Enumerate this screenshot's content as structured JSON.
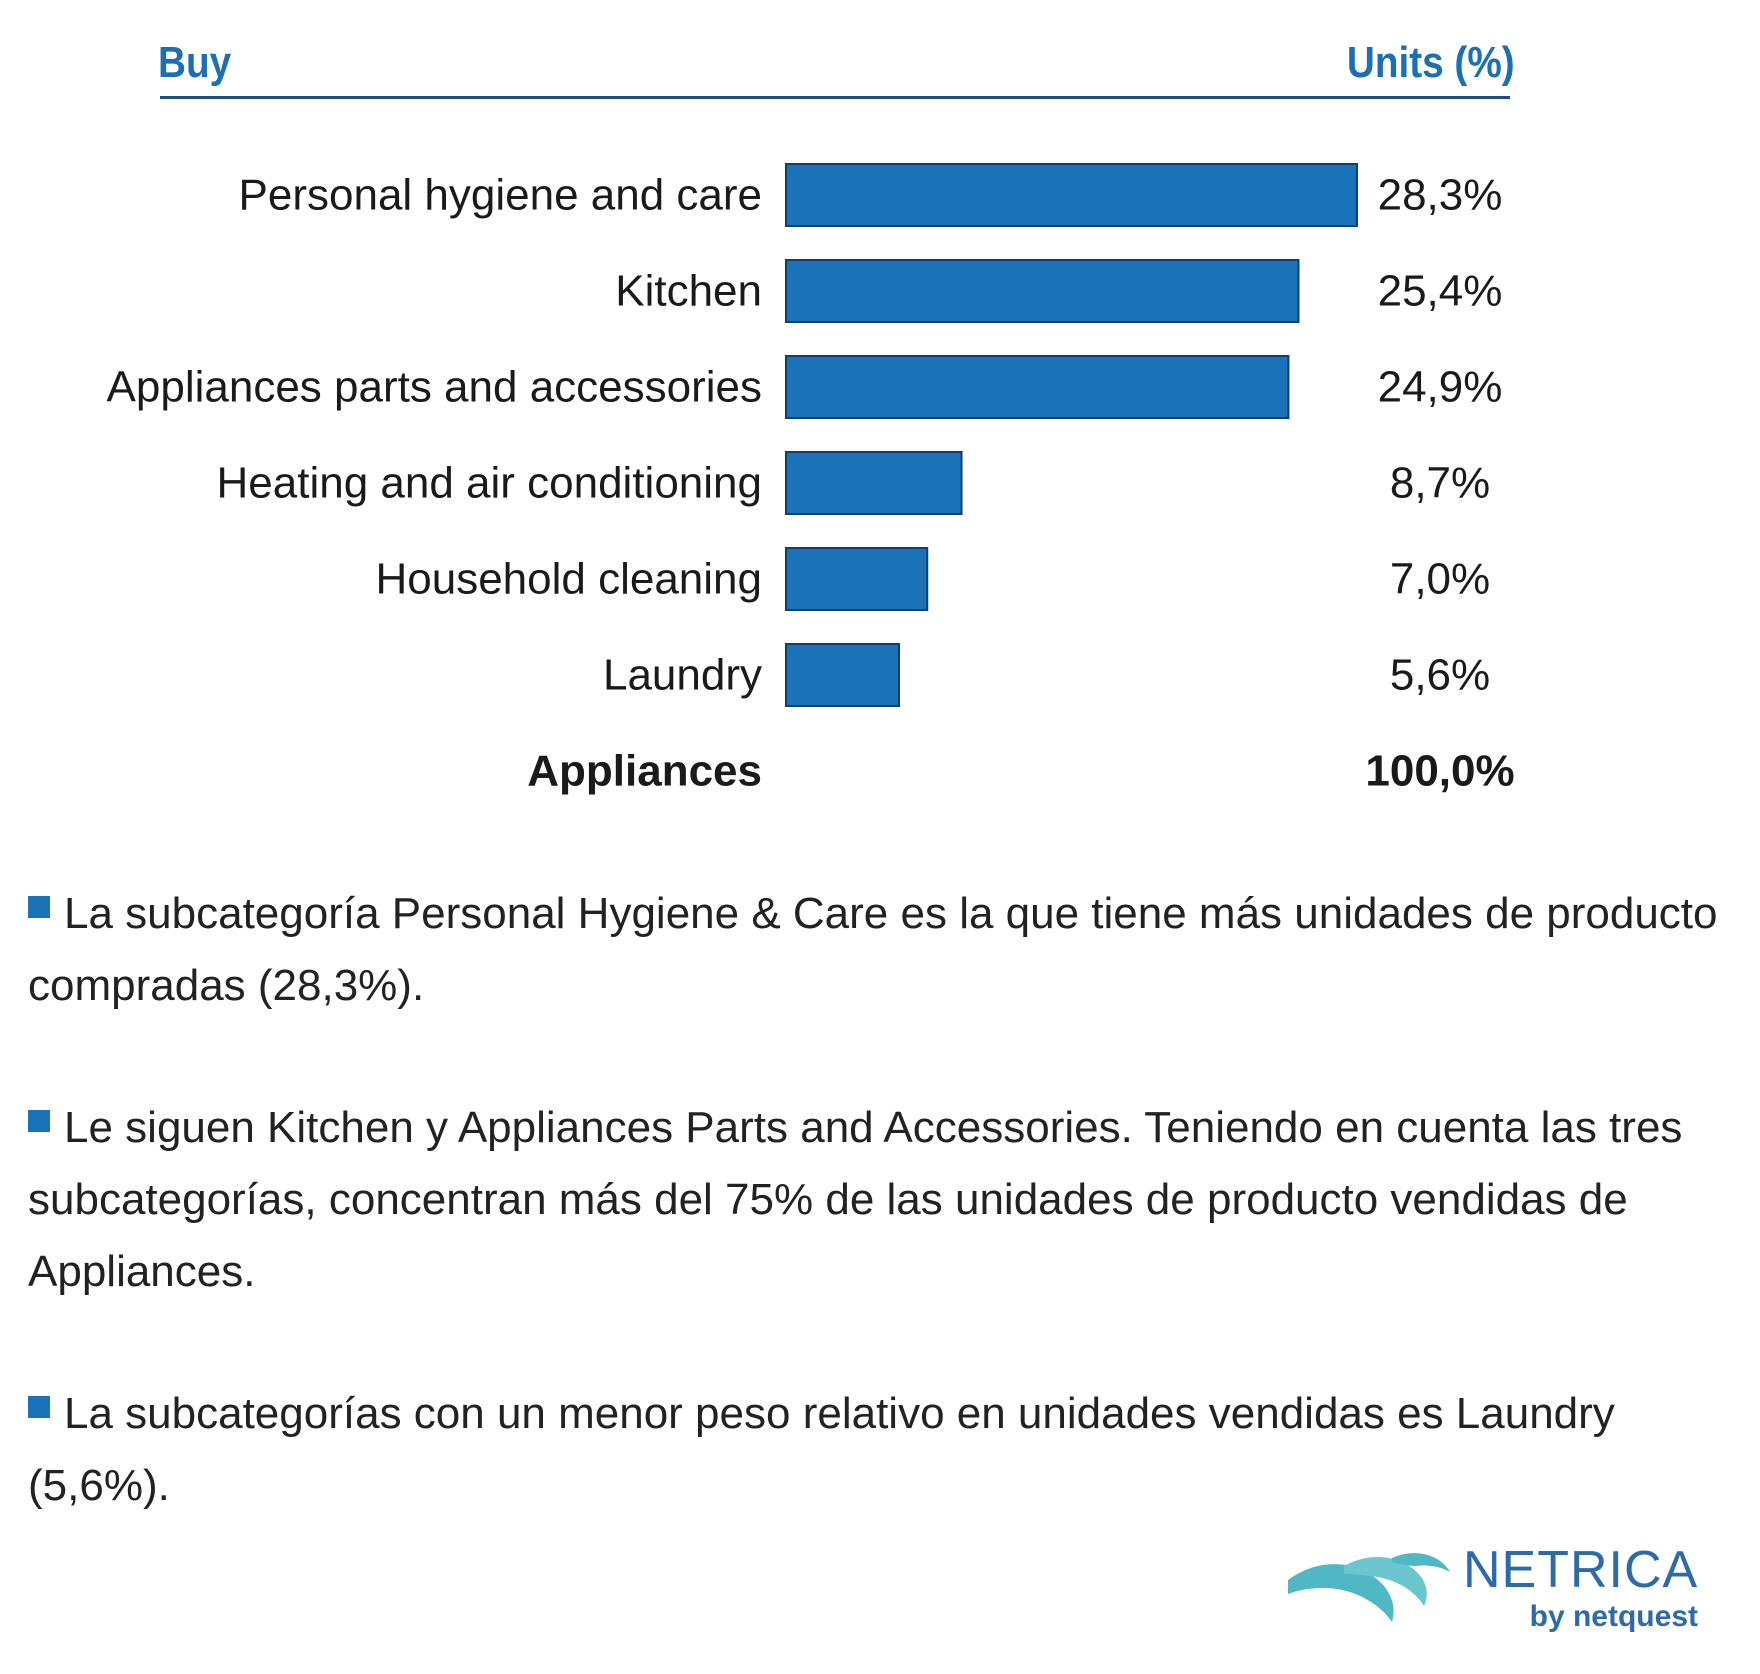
{
  "header": {
    "left": "Buy",
    "right": "Units (%)"
  },
  "chart_data": {
    "type": "bar",
    "orientation": "horizontal",
    "categories": [
      "Personal hygiene and care",
      "Kitchen",
      "Appliances parts and accessories",
      "Heating and air conditioning",
      "Household cleaning",
      "Laundry"
    ],
    "values": [
      28.3,
      25.4,
      24.9,
      8.7,
      7.0,
      5.6
    ],
    "value_labels": [
      "28,3%",
      "25,4%",
      "24,9%",
      "8,7%",
      "7,0%",
      "5,6%"
    ],
    "total": {
      "label": "Appliances",
      "value": 100.0,
      "value_label": "100,0%"
    },
    "unit": "%",
    "bar_color": "#1a72b8",
    "grid": false
  },
  "bullets": [
    "La subcategoría Personal Hygiene & Care es la que tiene más unidades de producto compradas (28,3%).",
    "Le siguen Kitchen y Appliances Parts and Accessories. Teniendo en cuenta las tres subcategorías, concentran más del 75% de las unidades de producto vendidas de Appliances.",
    "La subcategorías con un menor peso relativo en unidades vendidas es Laundry (5,6%)."
  ],
  "logo": {
    "name": "NETRICA",
    "sub": "by netquest",
    "icon": "netrica-wave-icon",
    "colors": [
      "#4fb8c4",
      "#2c6aa8"
    ]
  }
}
